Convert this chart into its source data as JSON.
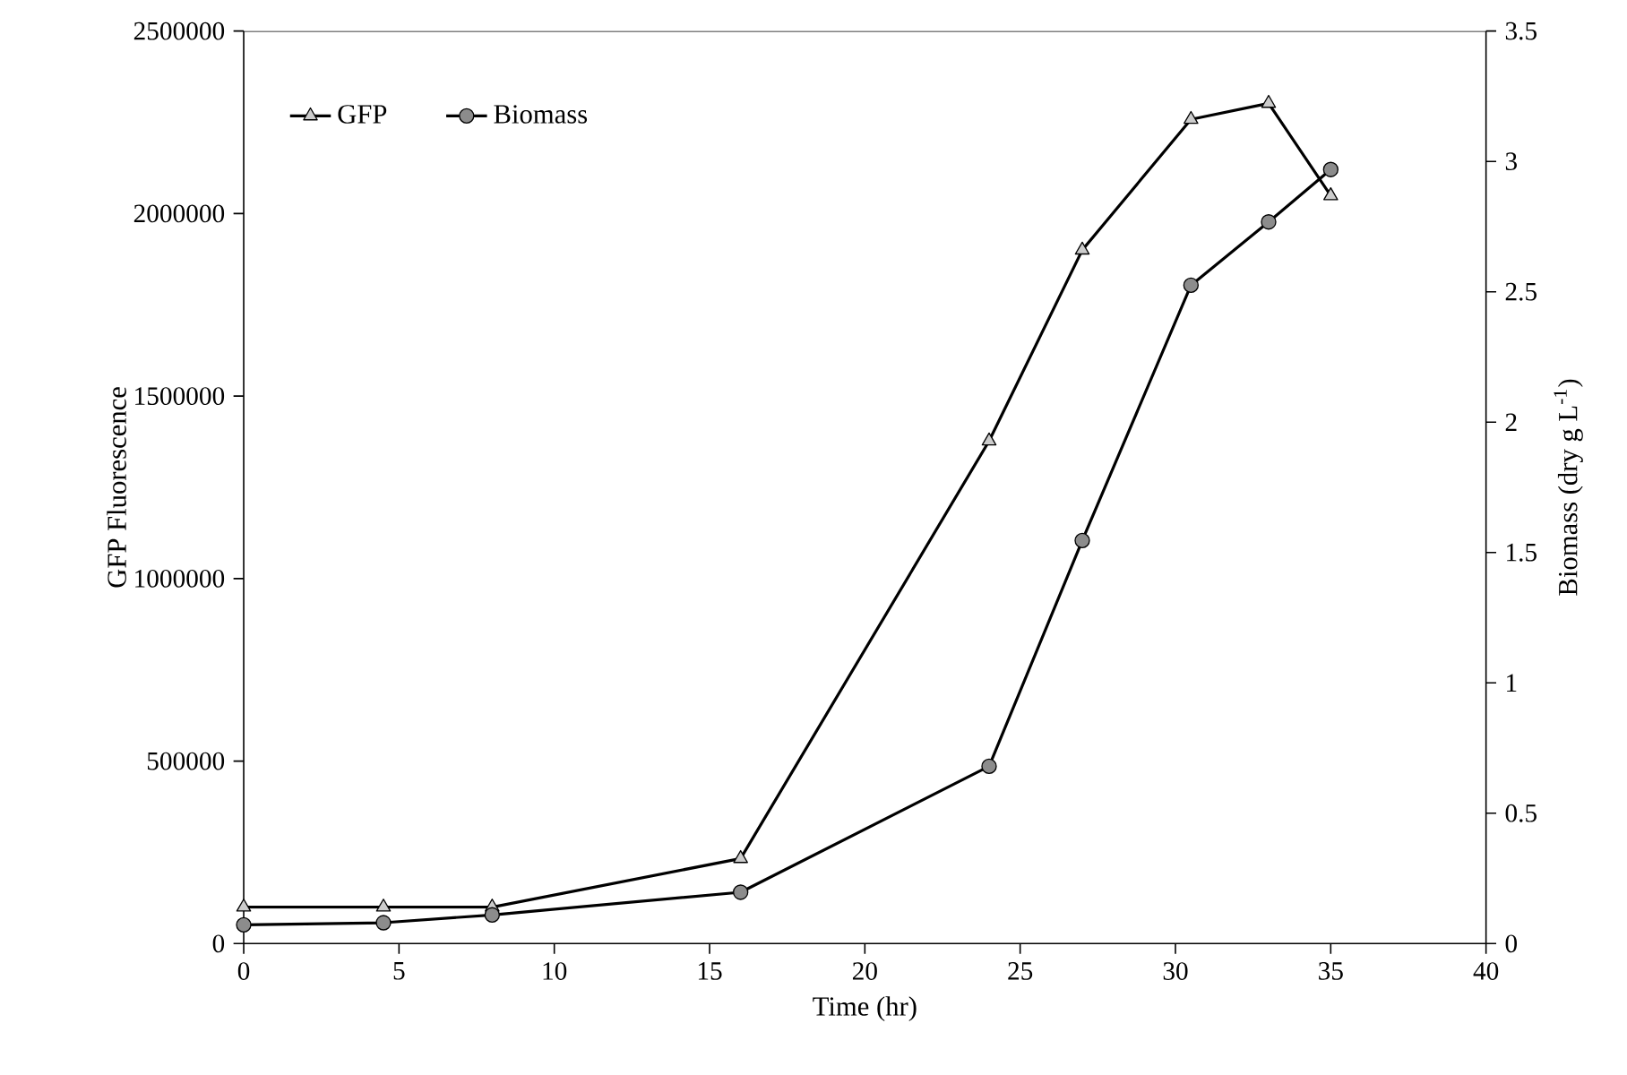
{
  "chart_data": {
    "type": "line",
    "xlabel": "Time (hr)",
    "ylabel": "GFP Fluorescence",
    "y2label": "Biomass (dry g L$^{-1}$)",
    "xlim": [
      0,
      40
    ],
    "xticks": [
      0,
      5,
      10,
      15,
      20,
      25,
      30,
      35,
      40
    ],
    "ylim": [
      0,
      2500000
    ],
    "yticks": [
      0,
      500000,
      1000000,
      1500000,
      2000000,
      2500000
    ],
    "y2lim": [
      0,
      3.5
    ],
    "y2ticks": [
      0,
      0.5,
      1,
      1.5,
      2,
      2.5,
      3,
      3.5
    ],
    "legend": "top left",
    "grid": false,
    "series": [
      {
        "name": "GFP",
        "color": "#cccccc",
        "marker": "triangle",
        "x": [
          0,
          4.5,
          8,
          16,
          24,
          27,
          30.5,
          33,
          35
        ],
        "values": [
          100000,
          100000,
          100000,
          233000,
          1377000,
          1900000,
          2258000,
          2302000,
          2049000
        ]
      },
      {
        "name": "Biomass",
        "color": "#8c8c8c",
        "marker": "circle",
        "axis": "y2",
        "x": [
          0,
          4.5,
          8,
          16,
          24,
          27,
          30.5,
          33,
          35
        ],
        "values": [
          0.072,
          0.08,
          0.11,
          0.197,
          0.68,
          1.546,
          2.525,
          2.768,
          2.969
        ]
      }
    ]
  }
}
